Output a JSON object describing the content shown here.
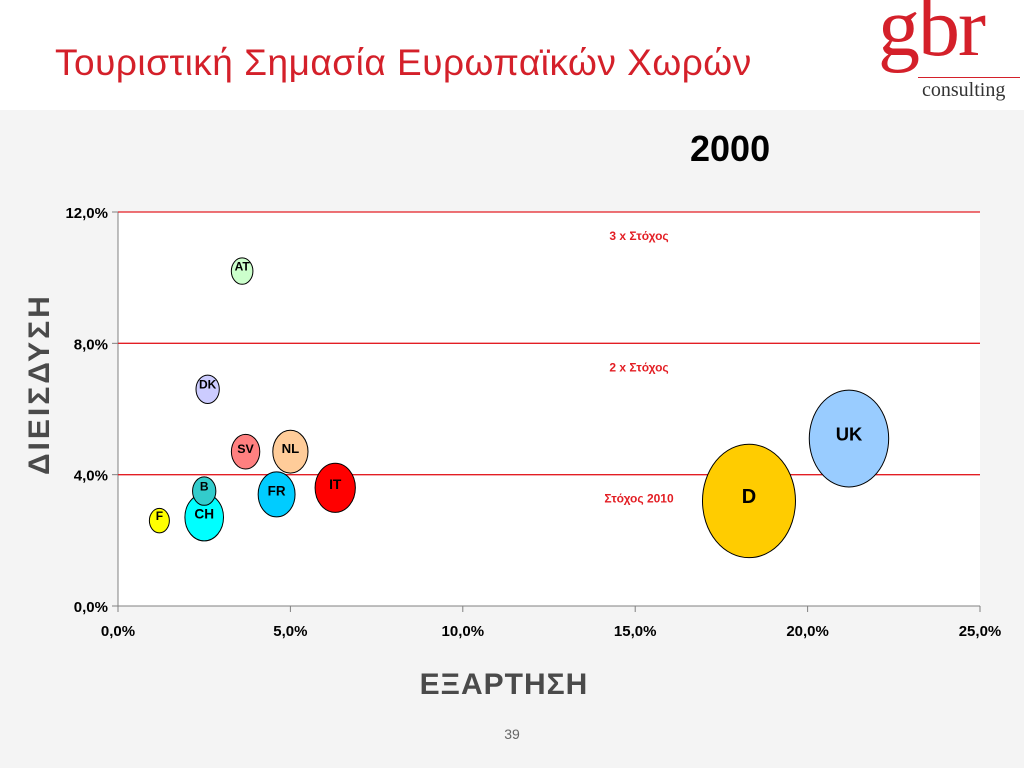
{
  "slide": {
    "title": "Τουριστική Σημασία Ευρωπαϊκών Χωρών",
    "page_number": "39",
    "logo": {
      "main": "gbr",
      "sub": "consulting"
    }
  },
  "colors": {
    "accent": "#d4202a",
    "target_line": "#e31e24"
  },
  "chart_data": {
    "type": "scatter",
    "title": "2000",
    "xlabel": "ΕΞΑΡΤΗΣΗ",
    "ylabel": "ΔΙΕΙΣΔΥΣΗ",
    "xlim": [
      0,
      25
    ],
    "ylim": [
      0,
      12
    ],
    "x_ticks": [
      "0,0%",
      "5,0%",
      "10,0%",
      "15,0%",
      "20,0%",
      "25,0%"
    ],
    "y_ticks": [
      "0,0%",
      "4,0%",
      "8,0%",
      "12,0%"
    ],
    "reference_lines": [
      {
        "y": 4.0,
        "label": "Στόχος 2010"
      },
      {
        "y": 8.0,
        "label": "2 x Στόχος"
      },
      {
        "y": 12.0,
        "label": "3 x Στόχος"
      }
    ],
    "points": [
      {
        "label": "AT",
        "x": 3.6,
        "y": 10.2,
        "size": 0.4,
        "color": "#ccffcc"
      },
      {
        "label": "DK",
        "x": 2.6,
        "y": 6.6,
        "size": 0.45,
        "color": "#ccccff"
      },
      {
        "label": "SV",
        "x": 3.7,
        "y": 4.7,
        "size": 0.6,
        "color": "#ff8080"
      },
      {
        "label": "NL",
        "x": 5.0,
        "y": 4.7,
        "size": 0.8,
        "color": "#ffcc99"
      },
      {
        "label": "B",
        "x": 2.5,
        "y": 3.5,
        "size": 0.45,
        "color": "#33cccc"
      },
      {
        "label": "FR",
        "x": 4.6,
        "y": 3.4,
        "size": 0.85,
        "color": "#00ccff"
      },
      {
        "label": "IT",
        "x": 6.3,
        "y": 3.6,
        "size": 0.95,
        "color": "#ff0000"
      },
      {
        "label": "F",
        "x": 1.2,
        "y": 2.6,
        "size": 0.35,
        "color": "#ffff00"
      },
      {
        "label": "CH",
        "x": 2.5,
        "y": 2.7,
        "size": 0.9,
        "color": "#00ffff"
      },
      {
        "label": "UK",
        "x": 21.2,
        "y": 5.1,
        "size": 2.1,
        "color": "#99ccff"
      },
      {
        "label": "D",
        "x": 18.3,
        "y": 3.2,
        "size": 2.5,
        "color": "#ffcc00"
      }
    ]
  }
}
